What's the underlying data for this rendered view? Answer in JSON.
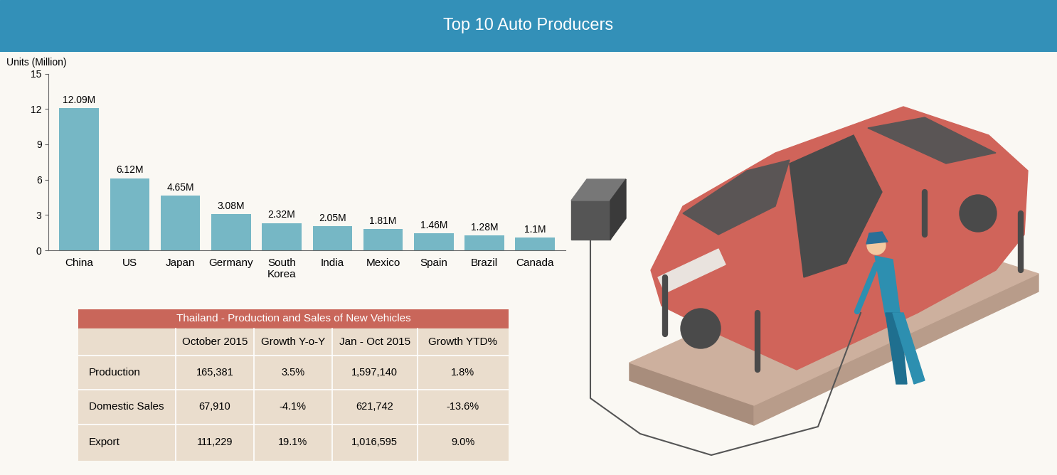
{
  "header": {
    "title": "Top 10 Auto Producers"
  },
  "chart_data": {
    "type": "bar",
    "y_label": "Units (Million)",
    "categories": [
      "China",
      "US",
      "Japan",
      "Germany",
      "South Korea",
      "India",
      "Mexico",
      "Spain",
      "Brazil",
      "Canada"
    ],
    "values": [
      12.09,
      6.12,
      4.65,
      3.08,
      2.32,
      2.05,
      1.81,
      1.46,
      1.28,
      1.1
    ],
    "value_labels": [
      "12.09M",
      "6.12M",
      "4.65M",
      "3.08M",
      "2.32M",
      "2.05M",
      "1.81M",
      "1.46M",
      "1.28M",
      "1.1M"
    ],
    "color": "#76b7c5",
    "ylim": [
      0,
      15
    ],
    "yticks": [
      0,
      3,
      6,
      9,
      12,
      15
    ],
    "grid": false,
    "data_labels": true
  },
  "table": {
    "title": "Thailand - Production and Sales of New Vehicles",
    "columns": [
      "October 2015",
      "Growth Y-o-Y",
      "Jan - Oct 2015",
      "Growth YTD%"
    ],
    "rows": [
      {
        "label": "Production",
        "cells": [
          "165,381",
          "3.5%",
          "1,597,140",
          "1.8%"
        ]
      },
      {
        "label": "Domestic Sales",
        "cells": [
          "67,910",
          "-4.1%",
          "621,742",
          "-13.6%"
        ]
      },
      {
        "label": "Export",
        "cells": [
          "111,229",
          "19.1%",
          "1,016,595",
          "9.0%"
        ]
      }
    ]
  }
}
